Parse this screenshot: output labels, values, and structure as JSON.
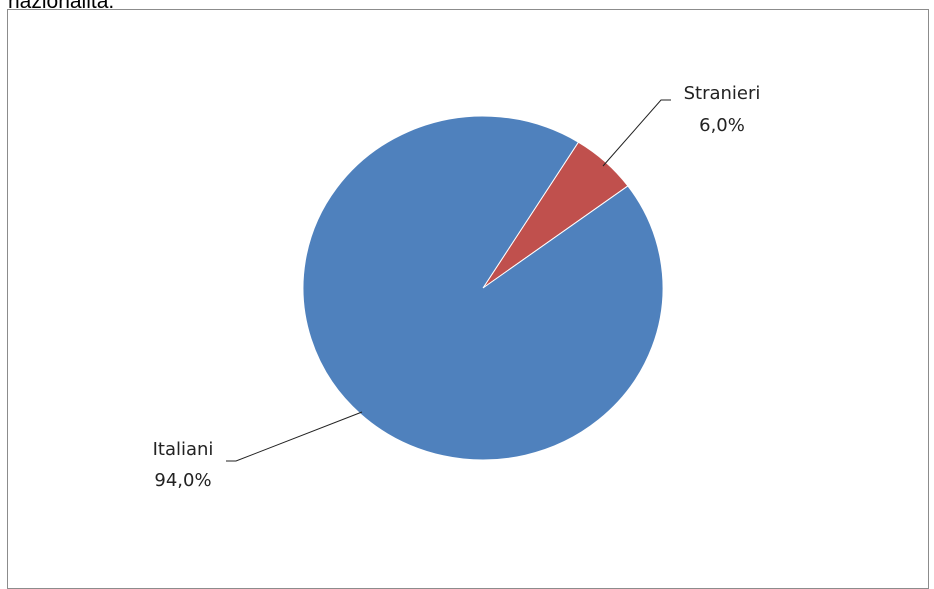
{
  "heading": "nazionalità.",
  "chart_data": {
    "type": "pie",
    "categories": [
      "Italiani",
      "Stranieri"
    ],
    "values": [
      94.0,
      6.0
    ],
    "labels": [
      "94,0%",
      "6,0%"
    ],
    "colors": [
      "#4f81bd",
      "#c0504d"
    ]
  }
}
